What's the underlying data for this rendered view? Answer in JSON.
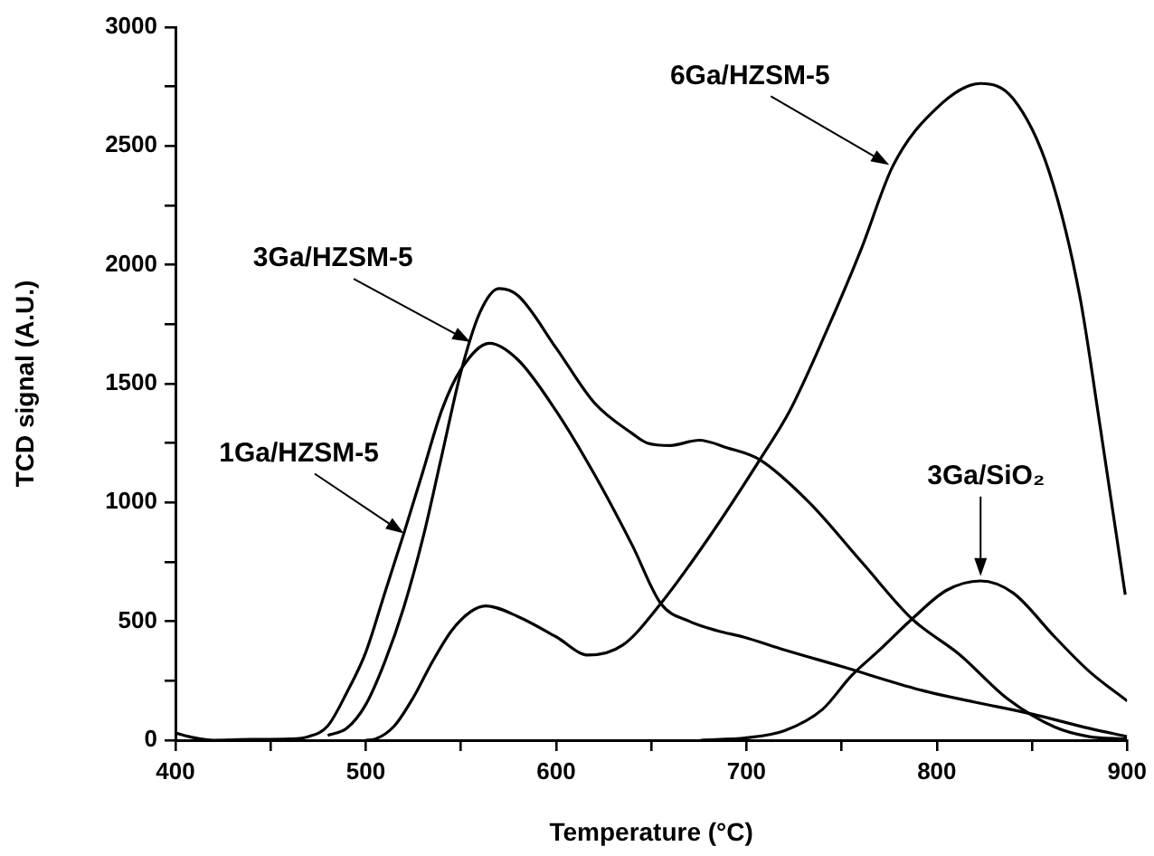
{
  "chart_data": {
    "type": "line",
    "xlabel": "Temperature (°C)",
    "ylabel": "TCD signal (A.U.)",
    "xlim": [
      400,
      900
    ],
    "ylim": [
      0,
      3000
    ],
    "xticks": [
      400,
      {
        "value": 450,
        "label": null
      },
      500,
      {
        "value": 550,
        "label": null
      },
      600,
      {
        "value": 650,
        "label": null
      },
      700,
      {
        "value": 750,
        "label": null
      },
      800,
      {
        "value": 850,
        "label": null
      },
      900
    ],
    "yticks": [
      0,
      {
        "value": 250,
        "label": null
      },
      500,
      {
        "value": 750,
        "label": null
      },
      1000,
      {
        "value": 1250,
        "label": null
      },
      1500,
      {
        "value": 1750,
        "label": null
      },
      2000,
      {
        "value": 2250,
        "label": null
      },
      2500,
      {
        "value": 2750,
        "label": null
      },
      3000
    ],
    "grid": false,
    "legend": false,
    "marker": "none",
    "line_style": "solid",
    "series": [
      {
        "color": "#000000",
        "x": [
          400,
          410,
          420,
          440,
          460,
          470,
          480,
          490,
          500,
          510,
          520,
          530,
          540,
          550,
          565,
          580,
          600,
          620,
          640,
          655,
          670,
          685,
          698,
          720,
          750,
          792,
          820,
          850,
          880,
          900
        ],
        "values": [
          30,
          10,
          0,
          3,
          5,
          15,
          60,
          200,
          370,
          620,
          870,
          1130,
          1390,
          1560,
          1670,
          1600,
          1385,
          1120,
          820,
          575,
          500,
          460,
          435,
          380,
          310,
          210,
          160,
          110,
          50,
          15
        ]
      },
      {
        "color": "#000000",
        "x": [
          480,
          490,
          500,
          510,
          520,
          530,
          540,
          550,
          560,
          570,
          580,
          600,
          620,
          640,
          648,
          660,
          675,
          690,
          707,
          733,
          761,
          787,
          812,
          837,
          862,
          880,
          900
        ],
        "values": [
          20,
          50,
          150,
          330,
          560,
          850,
          1200,
          1550,
          1800,
          1900,
          1870,
          1650,
          1420,
          1290,
          1250,
          1240,
          1262,
          1230,
          1180,
          1000,
          745,
          510,
          360,
          175,
          55,
          15,
          5
        ]
      },
      {
        "color": "#000000",
        "x": [
          500,
          505,
          515,
          525,
          535,
          545,
          555,
          563,
          580,
          600,
          617,
          635,
          655,
          680,
          707,
          723,
          742,
          760,
          777,
          800,
          823,
          840,
          859,
          875,
          886,
          899
        ],
        "values": [
          0,
          5,
          60,
          180,
          330,
          460,
          540,
          565,
          520,
          435,
          358,
          400,
          575,
          850,
          1180,
          1390,
          1720,
          2060,
          2417,
          2660,
          2763,
          2700,
          2392,
          1873,
          1310,
          612
        ]
      },
      {
        "color": "#000000",
        "x": [
          676,
          700,
          720,
          740,
          755,
          770,
          787,
          805,
          823,
          840,
          862,
          880,
          900
        ],
        "values": [
          0,
          10,
          40,
          130,
          270,
          380,
          510,
          630,
          670,
          620,
          434,
          290,
          165
        ]
      }
    ],
    "annotations": [
      {
        "text": "1Ga/HZSM-5",
        "x": 520,
        "y": 870
      },
      {
        "text": "3Ga/HZSM-5",
        "x": 555,
        "y": 1675
      },
      {
        "text": "6Ga/HZSM-5",
        "x": 775,
        "y": 2420
      },
      {
        "text": "3Ga/SiO₂",
        "x": 823,
        "y": 690
      }
    ]
  }
}
